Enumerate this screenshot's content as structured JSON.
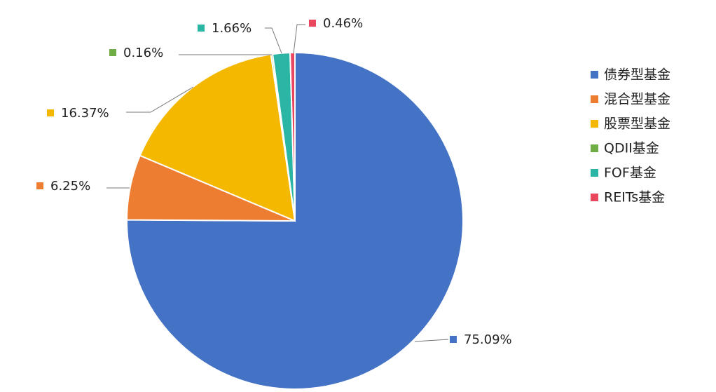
{
  "chart_data": {
    "type": "pie",
    "categories": [
      "债券型基金",
      "混合型基金",
      "股票型基金",
      "QDII基金",
      "FOF基金",
      "REITs基金"
    ],
    "values": [
      75.09,
      6.25,
      16.37,
      0.16,
      1.66,
      0.46
    ],
    "value_labels": [
      "75.09%",
      "6.25%",
      "16.37%",
      "0.16%",
      "1.66%",
      "0.46%"
    ],
    "colors": [
      "#4472c4",
      "#ed7d31",
      "#f5b800",
      "#70ad47",
      "#2bb5a5",
      "#e8475e"
    ],
    "legend": "right"
  }
}
